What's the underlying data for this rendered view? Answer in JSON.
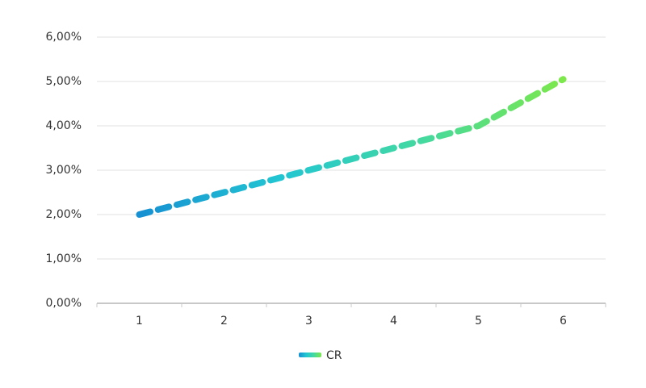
{
  "chart_data": {
    "type": "line",
    "categories": [
      "1",
      "2",
      "3",
      "4",
      "5",
      "6"
    ],
    "series": [
      {
        "name": "CR",
        "color": "#22c6d2",
        "gradient": [
          "#1690d2",
          "#22c6d2",
          "#44d9a0",
          "#7ce84a"
        ],
        "values": [
          2.0,
          2.5,
          3.0,
          3.5,
          4.0,
          5.05
        ]
      }
    ],
    "ylim": [
      0,
      6
    ],
    "yticks": [
      {
        "value": 0,
        "label": "0,00%"
      },
      {
        "value": 1,
        "label": "1,00%"
      },
      {
        "value": 2,
        "label": "2,00%"
      },
      {
        "value": 3,
        "label": "3,00%"
      },
      {
        "value": 4,
        "label": "4,00%"
      },
      {
        "value": 5,
        "label": "5,00%"
      },
      {
        "value": 6,
        "label": "6,00%"
      }
    ],
    "grid": true,
    "legend": "bottom"
  }
}
